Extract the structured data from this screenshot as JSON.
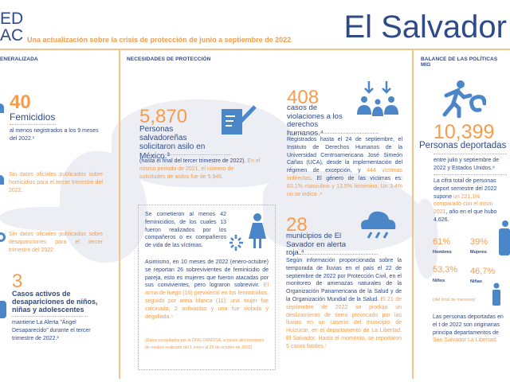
{
  "header": {
    "logo": "ED\nAC",
    "subtitle": "Una actualización sobre la crisis de protección de junio a septiembre de 2022",
    "country": "El Salvador"
  },
  "col1": {
    "heading": "ENERALIZADA",
    "femicidios": {
      "value": "40",
      "label": "Femicidios",
      "text": "al menos negistrados a los 9 meses del 2022.¹"
    },
    "homicidios": "Sin datos oficiales publicados sobre homicidios para el tercer trimestre del 2022.",
    "desapariciones": "Sin datos oficiales publicados sobre desapariciones para el tercer trimestre del 2022.",
    "ninos": {
      "value": "3",
      "label": "Casos activos de desapariciones de niños, niñas y adolescentes",
      "text": "mantiene La Alerta \"Ángel Desaparecido\" durante el tercer trimestre de 2022.²"
    }
  },
  "col2": {
    "heading": "NECESIDADES DE PROTECCIÓN",
    "asilo": {
      "value": "5,870",
      "label": "Personas salvadoreñas solicitaron asilo en México.³",
      "text_blue": "(hasta el final del tercer trimestre de 2022).",
      "text_orange": " En el mismo período de 2021, el número de solicitudes de asilos fue de 5,946."
    },
    "box": {
      "p1": "Se cometieron al menos 42 feminicidios, de los cuales 13 fueron realizados por los compañeros o ex compañeros de vida de las víctimas.",
      "p2_blue": "Asimismo, en 10 meses de 2022 (enero-octubre) se reportan 26 sobrevivientes de feminicidio de pareja, esto es mujeres que fueron atacadas por sus convivientes, pero lograron sobrevivir.",
      "p2_orange": " El arma de fuego (16) prevaleció en los feminicidios, seguido por arma blanca (11); una mujer fue calcinada, 2 asfixiadas y una fue violada y degollada.⁵",
      "source": "(Datos recopilados por la ONG ORMUSA, a través del monitoreo de medios realizado del 1 enero al 25 de octubre de 2022)"
    }
  },
  "col3": {
    "ddhh": {
      "value": "408",
      "label": "casos de violaciones a los derechos humanos.⁴",
      "text_blue": "Registrados hasta el 24 de septiembre, el Instituto de Derechos Humanos de la Universidad Centroamericana José Simeón Cañas (UCA), desde la implementación del régimen de excepción, y ",
      "text_orange1": "444 víctimas indirectas",
      "text_blue2": ". El género de las víctimas es: ",
      "text_orange2": "83.1% masculino y 13.5% femenino. Un 3.4% no se indica .⁶"
    },
    "alerta": {
      "value": "28",
      "label": "municipios de El Savador en alerta roja.⁴",
      "text_blue": "Según información proporcionada sobre la temporada de lluvias en el país el 22 de septiembre de 2022 por Protección Civil, en el monitoreo de amenazas naturales de la Organización Panamericana de la Salud y de la Organización Mundial de la Salud.",
      "text_orange": " El 21 de septiembre de 2022 se produjo un deslizamiento de tierra provocado por las lluvias en un caserío del municipio de Huizúcar, en el departamento de La Libertad, El Salvador. Hasta el momento, se reportaron 5 casos fatales.⁷"
    }
  },
  "col4": {
    "heading": "BALANCE DE LAS POLÍTICAS MIG",
    "deport": {
      "value": "10,399",
      "label": "Personas deportadas",
      "text": "entre julio y septiembre de 2022 y Estados Unidos.⁸",
      "cifra_blue": "La cifra total de personas deport semestre del 2022 supone ",
      "cifra_orange": "un 221,1% comparado con el mism 2021",
      "cifra_blue2": ", año en el que hubo 4,626."
    },
    "stats": [
      {
        "value": "61%",
        "label": "Hombres"
      },
      {
        "value": "39%",
        "label": "Mujeres"
      },
      {
        "value": "53,3%",
        "label": "Niños"
      },
      {
        "value": "46,7%",
        "label": "Niñas"
      }
    ],
    "note": "(del total de menores)",
    "origen_blue": "Las personas deportadas en el t de 2022 son originarias principa departamentos de ",
    "origen_orange": "San Salvador La Libertad."
  },
  "colors": {
    "orange": "#f59d4e",
    "blue": "#2f4a8a",
    "icon": "#4a86c8"
  }
}
